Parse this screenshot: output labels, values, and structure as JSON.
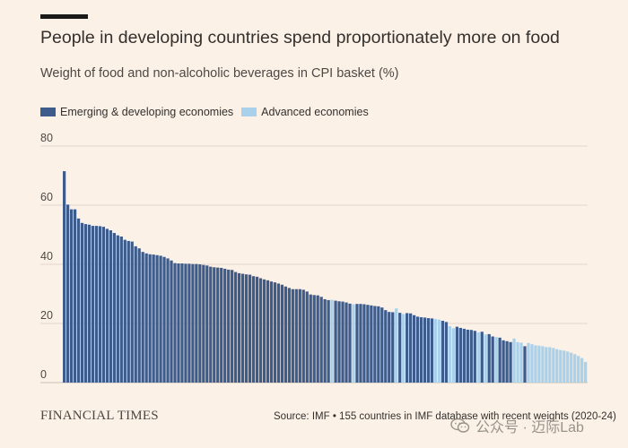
{
  "header": {
    "title": "People in developing countries spend proportionately more on food",
    "subtitle": "Weight of food and non-alcoholic beverages in CPI basket (%)"
  },
  "legend": [
    {
      "label": "Emerging & developing economies",
      "color": "#3d5c8c"
    },
    {
      "label": "Advanced economies",
      "color": "#a9d1eb"
    }
  ],
  "footer": {
    "brand": "FINANCIAL TIMES",
    "source": "Source: IMF • 155 countries in IMF database with recent weights (2020-24)"
  },
  "watermark": {
    "text": "公众号 · 迈际Lab",
    "icon": "wechat-icon"
  },
  "colors": {
    "background": "#fcf1e6",
    "emerging": "#3d5c8c",
    "advanced": "#a9d1eb",
    "grid": "#e3d8cd"
  },
  "chart_data": {
    "type": "bar",
    "title": "People in developing countries spend proportionately more on food",
    "ylabel": "Weight of food and non-alcoholic beverages in CPI basket (%)",
    "ylim": [
      0,
      80
    ],
    "yticks": [
      0,
      20,
      40,
      60,
      80
    ],
    "grid": true,
    "legend_position": "top-left",
    "series": [
      {
        "name": "Emerging & developing economies",
        "values": [
          71.5,
          60.2,
          58.6,
          58.6,
          55.5,
          54.0,
          53.6,
          53.4,
          53.0,
          53.0,
          52.9,
          52.7,
          52.0,
          51.5,
          50.6,
          49.8,
          49.4,
          48.3,
          47.9,
          47.7,
          46.1,
          45.4,
          44.2,
          43.7,
          43.4,
          43.3,
          43.1,
          42.9,
          42.5,
          42.0,
          41.3,
          40.4,
          40.3,
          40.3,
          40.2,
          40.2,
          40.1,
          40.1,
          40.0,
          39.8,
          39.6,
          39.2,
          39.0,
          38.9,
          38.8,
          38.5,
          38.2,
          38.1,
          37.4,
          37.0,
          36.8,
          36.6,
          36.5,
          36.0,
          35.8,
          35.3,
          34.9,
          34.6,
          34.2,
          33.9,
          33.5,
          33.1,
          32.5,
          32.0,
          31.6,
          31.6,
          31.6,
          31.4,
          30.8,
          29.8,
          29.6,
          29.5,
          29.0,
          28.2,
          27.9,
          27.7,
          27.5,
          27.4,
          27.1,
          26.7,
          26.6,
          26.6,
          26.5,
          26.3,
          26.1,
          25.9,
          25.8,
          25.4,
          24.5,
          23.9,
          23.8,
          23.6,
          23.5,
          23.4,
          22.8,
          22.3,
          22.1,
          22.0,
          21.8,
          21.7,
          20.9,
          20.5,
          18.9,
          18.5,
          18.2,
          17.9,
          17.8,
          17.5,
          17.2,
          16.4,
          15.6,
          15.2,
          14.3,
          14.0,
          13.7,
          12.3
        ],
        "indices": [
          0,
          1,
          2,
          3,
          4,
          5,
          6,
          7,
          8,
          9,
          10,
          11,
          12,
          13,
          14,
          15,
          16,
          17,
          18,
          19,
          20,
          21,
          22,
          23,
          24,
          25,
          26,
          27,
          28,
          29,
          30,
          31,
          32,
          33,
          34,
          35,
          36,
          37,
          38,
          39,
          40,
          41,
          42,
          43,
          44,
          45,
          46,
          47,
          48,
          49,
          50,
          51,
          52,
          53,
          54,
          55,
          56,
          57,
          58,
          59,
          60,
          61,
          62,
          63,
          64,
          65,
          66,
          67,
          68,
          69,
          70,
          71,
          72,
          73,
          74,
          76,
          77,
          78,
          79,
          80,
          82,
          83,
          84,
          85,
          86,
          87,
          88,
          89,
          90,
          91,
          92,
          94,
          96,
          97,
          98,
          99,
          100,
          101,
          102,
          103,
          106,
          107,
          110,
          111,
          112,
          113,
          114,
          115,
          117,
          119,
          120,
          122,
          123,
          124,
          125,
          129
        ]
      },
      {
        "name": "Advanced economies",
        "values": [
          28.0,
          26.5,
          25.1,
          23.2,
          21.5,
          21.3,
          19.1,
          18.4,
          17.0,
          16.3,
          15.4,
          14.9,
          13.7,
          13.5,
          13.4,
          13.0,
          12.6,
          12.5,
          12.3,
          12.0,
          12.0,
          11.7,
          11.3,
          11.0,
          10.8,
          10.5,
          10.1,
          9.6,
          9.0,
          8.3,
          7.0
        ],
        "indices": [
          75,
          81,
          93,
          95,
          104,
          105,
          108,
          109,
          116,
          118,
          121,
          126,
          127,
          128,
          130,
          131,
          132,
          133,
          134,
          135,
          136,
          137,
          138,
          139,
          140,
          141,
          142,
          143,
          144,
          145,
          146
        ]
      }
    ]
  }
}
